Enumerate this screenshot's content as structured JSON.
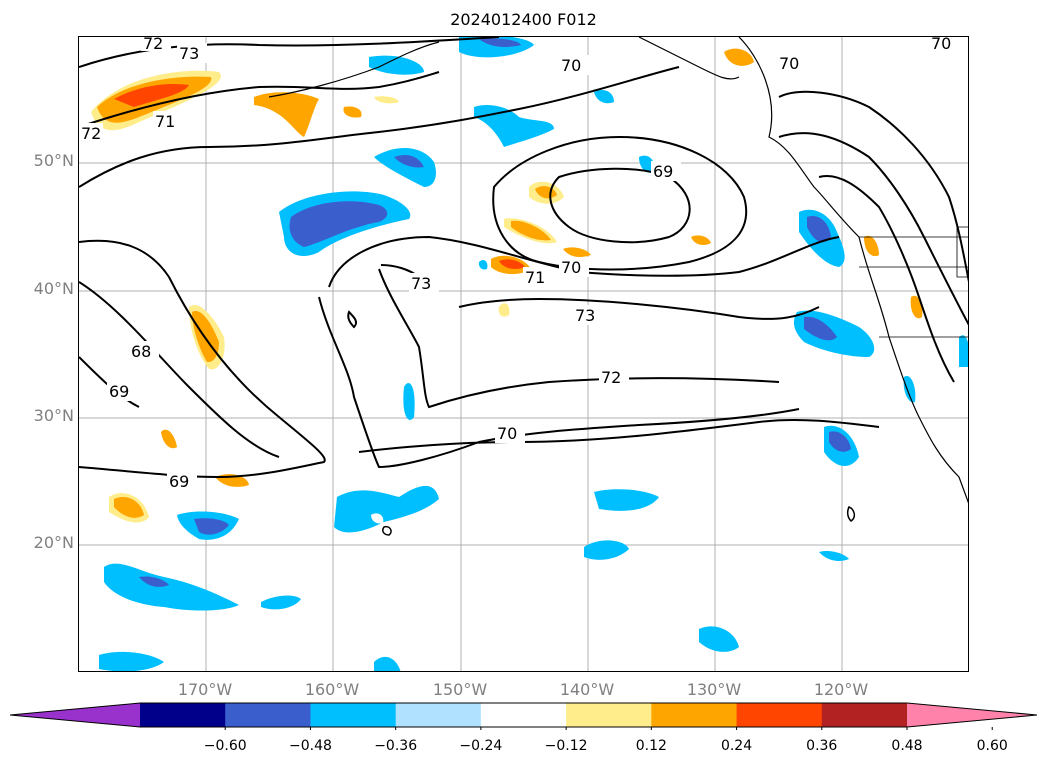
{
  "title": "2024012400 F012",
  "map": {
    "lat_labels": [
      "50°N",
      "40°N",
      "30°N",
      "20°N"
    ],
    "lon_labels": [
      "170°W",
      "160°W",
      "150°W",
      "140°W",
      "130°W",
      "120°W"
    ],
    "contour_labels": [
      "72",
      "73",
      "71",
      "72",
      "70",
      "70",
      "70",
      "69",
      "70",
      "71",
      "73",
      "73",
      "68",
      "69",
      "72",
      "70",
      "69"
    ]
  },
  "colorbar": {
    "tick_labels": [
      "−0.60",
      "−0.48",
      "−0.36",
      "−0.24",
      "−0.12",
      "0.12",
      "0.24",
      "0.36",
      "0.48",
      "0.60"
    ],
    "colors": [
      "#9932cc",
      "#00008b",
      "#3a5fcd",
      "#00bfff",
      "#b0e2ff",
      "#ffffff",
      "#ffec8b",
      "#ffa500",
      "#ff4500",
      "#b22222",
      "#ff82ab"
    ]
  }
}
